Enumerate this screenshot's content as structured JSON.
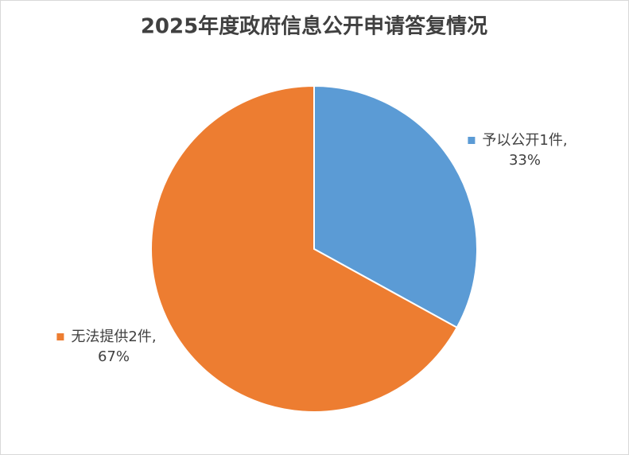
{
  "chart_data": {
    "type": "pie",
    "title": "2025年度政府信息公开申请答复情况",
    "categories": [
      "予以公开1件",
      "无法提供2件"
    ],
    "values": [
      33,
      67
    ],
    "value_labels": [
      "33%",
      "67%"
    ],
    "label_separator": ",",
    "colors": [
      "#5b9bd5",
      "#ed7d31"
    ]
  }
}
